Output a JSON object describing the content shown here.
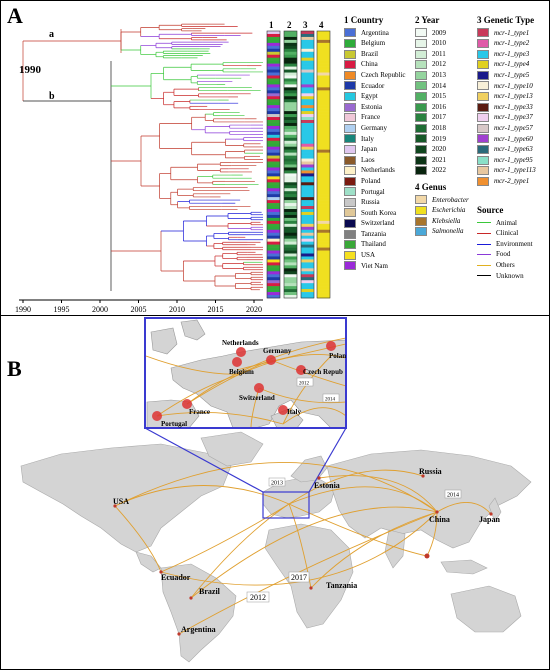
{
  "panel_a": {
    "label": "A",
    "clade_a": "a",
    "clade_b": "b",
    "root_year": "1990",
    "axis_ticks": [
      "1990",
      "1995",
      "2000",
      "2005",
      "2010",
      "2015",
      "2020"
    ],
    "col_headers": [
      "1",
      "2",
      "3",
      "4"
    ]
  },
  "legend_country": {
    "title": "1 Country",
    "items": [
      {
        "label": "Argentina",
        "color": "#4a6fd6"
      },
      {
        "label": "Belgium",
        "color": "#2eab3a"
      },
      {
        "label": "Brazil",
        "color": "#c8c832"
      },
      {
        "label": "China",
        "color": "#d81b43"
      },
      {
        "label": "Czech Republic",
        "color": "#f08a24"
      },
      {
        "label": "Ecuador",
        "color": "#1e3aa8"
      },
      {
        "label": "Egypt",
        "color": "#25c8e0"
      },
      {
        "label": "Estonia",
        "color": "#9a6ad0"
      },
      {
        "label": "France",
        "color": "#f0c8d8"
      },
      {
        "label": "Germany",
        "color": "#b0d0f0"
      },
      {
        "label": "Italy",
        "color": "#17857a"
      },
      {
        "label": "Japan",
        "color": "#e0c8f0"
      },
      {
        "label": "Laos",
        "color": "#8a5a2a"
      },
      {
        "label": "Netherlands",
        "color": "#fdf1c8"
      },
      {
        "label": "Poland",
        "color": "#7a1a10"
      },
      {
        "label": "Portugal",
        "color": "#9ee0c8"
      },
      {
        "label": "Russia",
        "color": "#c8c8c8"
      },
      {
        "label": "South Korea",
        "color": "#e0c898"
      },
      {
        "label": "Switzerland",
        "color": "#0a0a50"
      },
      {
        "label": "Tanzania",
        "color": "#808080"
      },
      {
        "label": "Thailand",
        "color": "#3aa838"
      },
      {
        "label": "USA",
        "color": "#f5e020"
      },
      {
        "label": "Viet Nam",
        "color": "#9a2ad8"
      }
    ]
  },
  "legend_year": {
    "title": "2 Year",
    "items": [
      {
        "label": "2009",
        "color": "#f2faf4"
      },
      {
        "label": "2010",
        "color": "#e6f5e8"
      },
      {
        "label": "2011",
        "color": "#d2eed6"
      },
      {
        "label": "2012",
        "color": "#b6e2bc"
      },
      {
        "label": "2013",
        "color": "#94d49e"
      },
      {
        "label": "2014",
        "color": "#72c280"
      },
      {
        "label": "2015",
        "color": "#52b064"
      },
      {
        "label": "2016",
        "color": "#3a9a4e"
      },
      {
        "label": "2017",
        "color": "#2a8240"
      },
      {
        "label": "2018",
        "color": "#1e6c34"
      },
      {
        "label": "2019",
        "color": "#165828"
      },
      {
        "label": "2020",
        "color": "#10461e"
      },
      {
        "label": "2021",
        "color": "#0c3416"
      },
      {
        "label": "2022",
        "color": "#08240e"
      }
    ]
  },
  "legend_genus": {
    "title": "4 Genus",
    "items": [
      {
        "label": "Enterobacter",
        "color": "#f2d8a8"
      },
      {
        "label": "Escherichia",
        "color": "#f0e020"
      },
      {
        "label": "Klebsiella",
        "color": "#a8752c"
      },
      {
        "label": "Salmonella",
        "color": "#4aa8d8"
      }
    ]
  },
  "legend_genetic": {
    "title": "3 Genetic Type",
    "items": [
      {
        "label": "mcr-1_type1",
        "color": "#c83a5a"
      },
      {
        "label": "mcr-1_type2",
        "color": "#e05aa8"
      },
      {
        "label": "mcr-1_type3",
        "color": "#28c8e8"
      },
      {
        "label": "mcr-1_type4",
        "color": "#e0d020"
      },
      {
        "label": "mcr-1_type5",
        "color": "#1a1a8a"
      },
      {
        "label": "mcr-1_type10",
        "color": "#f8f0d8"
      },
      {
        "label": "mcr-1_type13",
        "color": "#f0d060"
      },
      {
        "label": "mcr-1_type33",
        "color": "#5a1a10"
      },
      {
        "label": "mcr-1_type37",
        "color": "#f0d0f0"
      },
      {
        "label": "mcr-1_type57",
        "color": "#d8c8c8"
      },
      {
        "label": "mcr-1_type60",
        "color": "#a040d0"
      },
      {
        "label": "mcr-1_type63",
        "color": "#2a6a7a"
      },
      {
        "label": "mcr-1_type95",
        "color": "#8ae0c8"
      },
      {
        "label": "mcr-1_type113",
        "color": "#e8c8a0"
      },
      {
        "label": "mcr-2_type1",
        "color": "#f09030"
      }
    ]
  },
  "legend_source": {
    "title": "Source",
    "items": [
      {
        "label": "Animal",
        "color": "#3ac83a"
      },
      {
        "label": "Clinical",
        "color": "#c82828"
      },
      {
        "label": "Environment",
        "color": "#1a1ad8"
      },
      {
        "label": "Food",
        "color": "#8a3ad8"
      },
      {
        "label": "Others",
        "color": "#e0b020"
      },
      {
        "label": "Unknown",
        "color": "#000000"
      }
    ]
  },
  "panel_b": {
    "label": "B",
    "inset_places": [
      "Netherlands",
      "Germany",
      "Polan",
      "Belgium",
      "Czech Repub",
      "Switzerland",
      "France",
      "Italy",
      "Portugal"
    ],
    "inset_years": [
      "2012",
      "2014"
    ],
    "world_places": [
      "Russia",
      "Estonia",
      "USA",
      "China",
      "Japan",
      "Ecuador",
      "Brazil",
      "Tanzania",
      "Argentina"
    ],
    "world_years": [
      "2013",
      "2014",
      "2017",
      "2012"
    ]
  }
}
